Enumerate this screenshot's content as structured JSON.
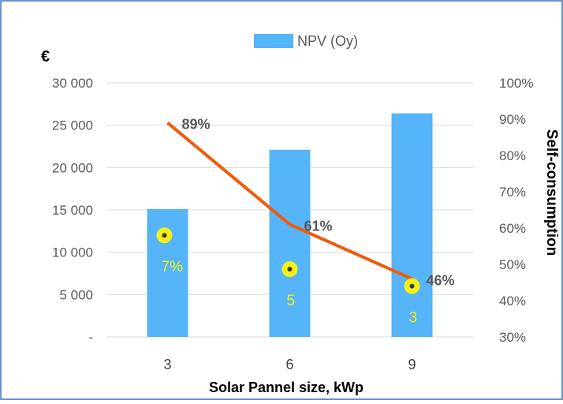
{
  "chart_data": {
    "type": "bar",
    "xlabel": "Solar Pannel size, kWp",
    "ylabel": "€",
    "y2label": "Self-consumption",
    "categories": [
      "3",
      "6",
      "9"
    ],
    "series": [
      {
        "name": "NPV (Oy)",
        "type": "bar",
        "axis": "left",
        "values": [
          15100,
          22100,
          26400
        ],
        "color": "#56b4f8"
      },
      {
        "type": "line",
        "axis": "right",
        "values": [
          89,
          61,
          46
        ],
        "labels": [
          "89%",
          "61%",
          "46%"
        ],
        "color": "#f15a0a"
      },
      {
        "type": "scatter",
        "axis": "left",
        "values": [
          12000,
          8000,
          6000
        ],
        "labels": [
          "7%",
          "5",
          "3"
        ],
        "color": "#f4ef16"
      }
    ],
    "yticks": [
      "-",
      "5 000",
      "10 000",
      "15 000",
      "20 000",
      "25 000",
      "30 000"
    ],
    "ylim": [
      0,
      30000
    ],
    "y2ticks": [
      "30%",
      "40%",
      "50%",
      "60%",
      "70%",
      "80%",
      "90%",
      "100%"
    ],
    "y2lim": [
      30,
      100
    ],
    "grid": true,
    "legend": "top"
  },
  "colors": {
    "frame_border": "#3b6bc2",
    "grid": "#d9d9d9",
    "axis_text": "#595959",
    "title_text": "#000000"
  }
}
